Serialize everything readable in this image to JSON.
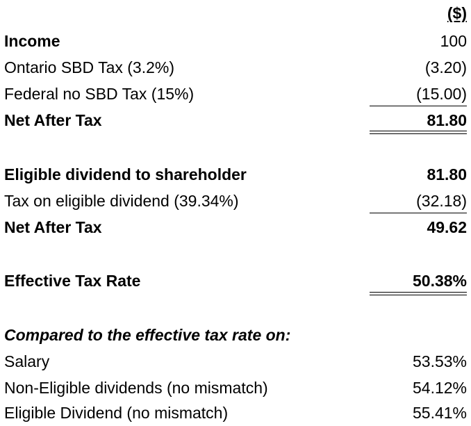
{
  "header": {
    "currency": "($)"
  },
  "section1": {
    "income": {
      "label": "Income",
      "value": "100"
    },
    "ontario_sbd": {
      "label": "Ontario SBD Tax (3.2%)",
      "value": "(3.20)"
    },
    "federal_no_sbd": {
      "label": "Federal no SBD Tax (15%)",
      "value": "(15.00)"
    },
    "net_after_tax": {
      "label": "Net After Tax",
      "value": "81.80"
    }
  },
  "section2": {
    "eligible_dividend": {
      "label": "Eligible dividend to shareholder",
      "value": "81.80"
    },
    "tax_on_dividend": {
      "label": "Tax on eligible dividend (39.34%)",
      "value": "(32.18)"
    },
    "net_after_tax": {
      "label": "Net After Tax",
      "value": "49.62"
    }
  },
  "section3": {
    "effective_rate": {
      "label": "Effective Tax Rate",
      "value": "50.38%"
    }
  },
  "comparison": {
    "heading": "Compared to the effective tax rate on:",
    "items": [
      {
        "label": "Salary",
        "value": "53.53%"
      },
      {
        "label": "Non-Eligible dividends (no mismatch)",
        "value": "54.12%"
      },
      {
        "label": "Eligible Dividend (no mismatch)",
        "value": "55.41%"
      }
    ]
  }
}
